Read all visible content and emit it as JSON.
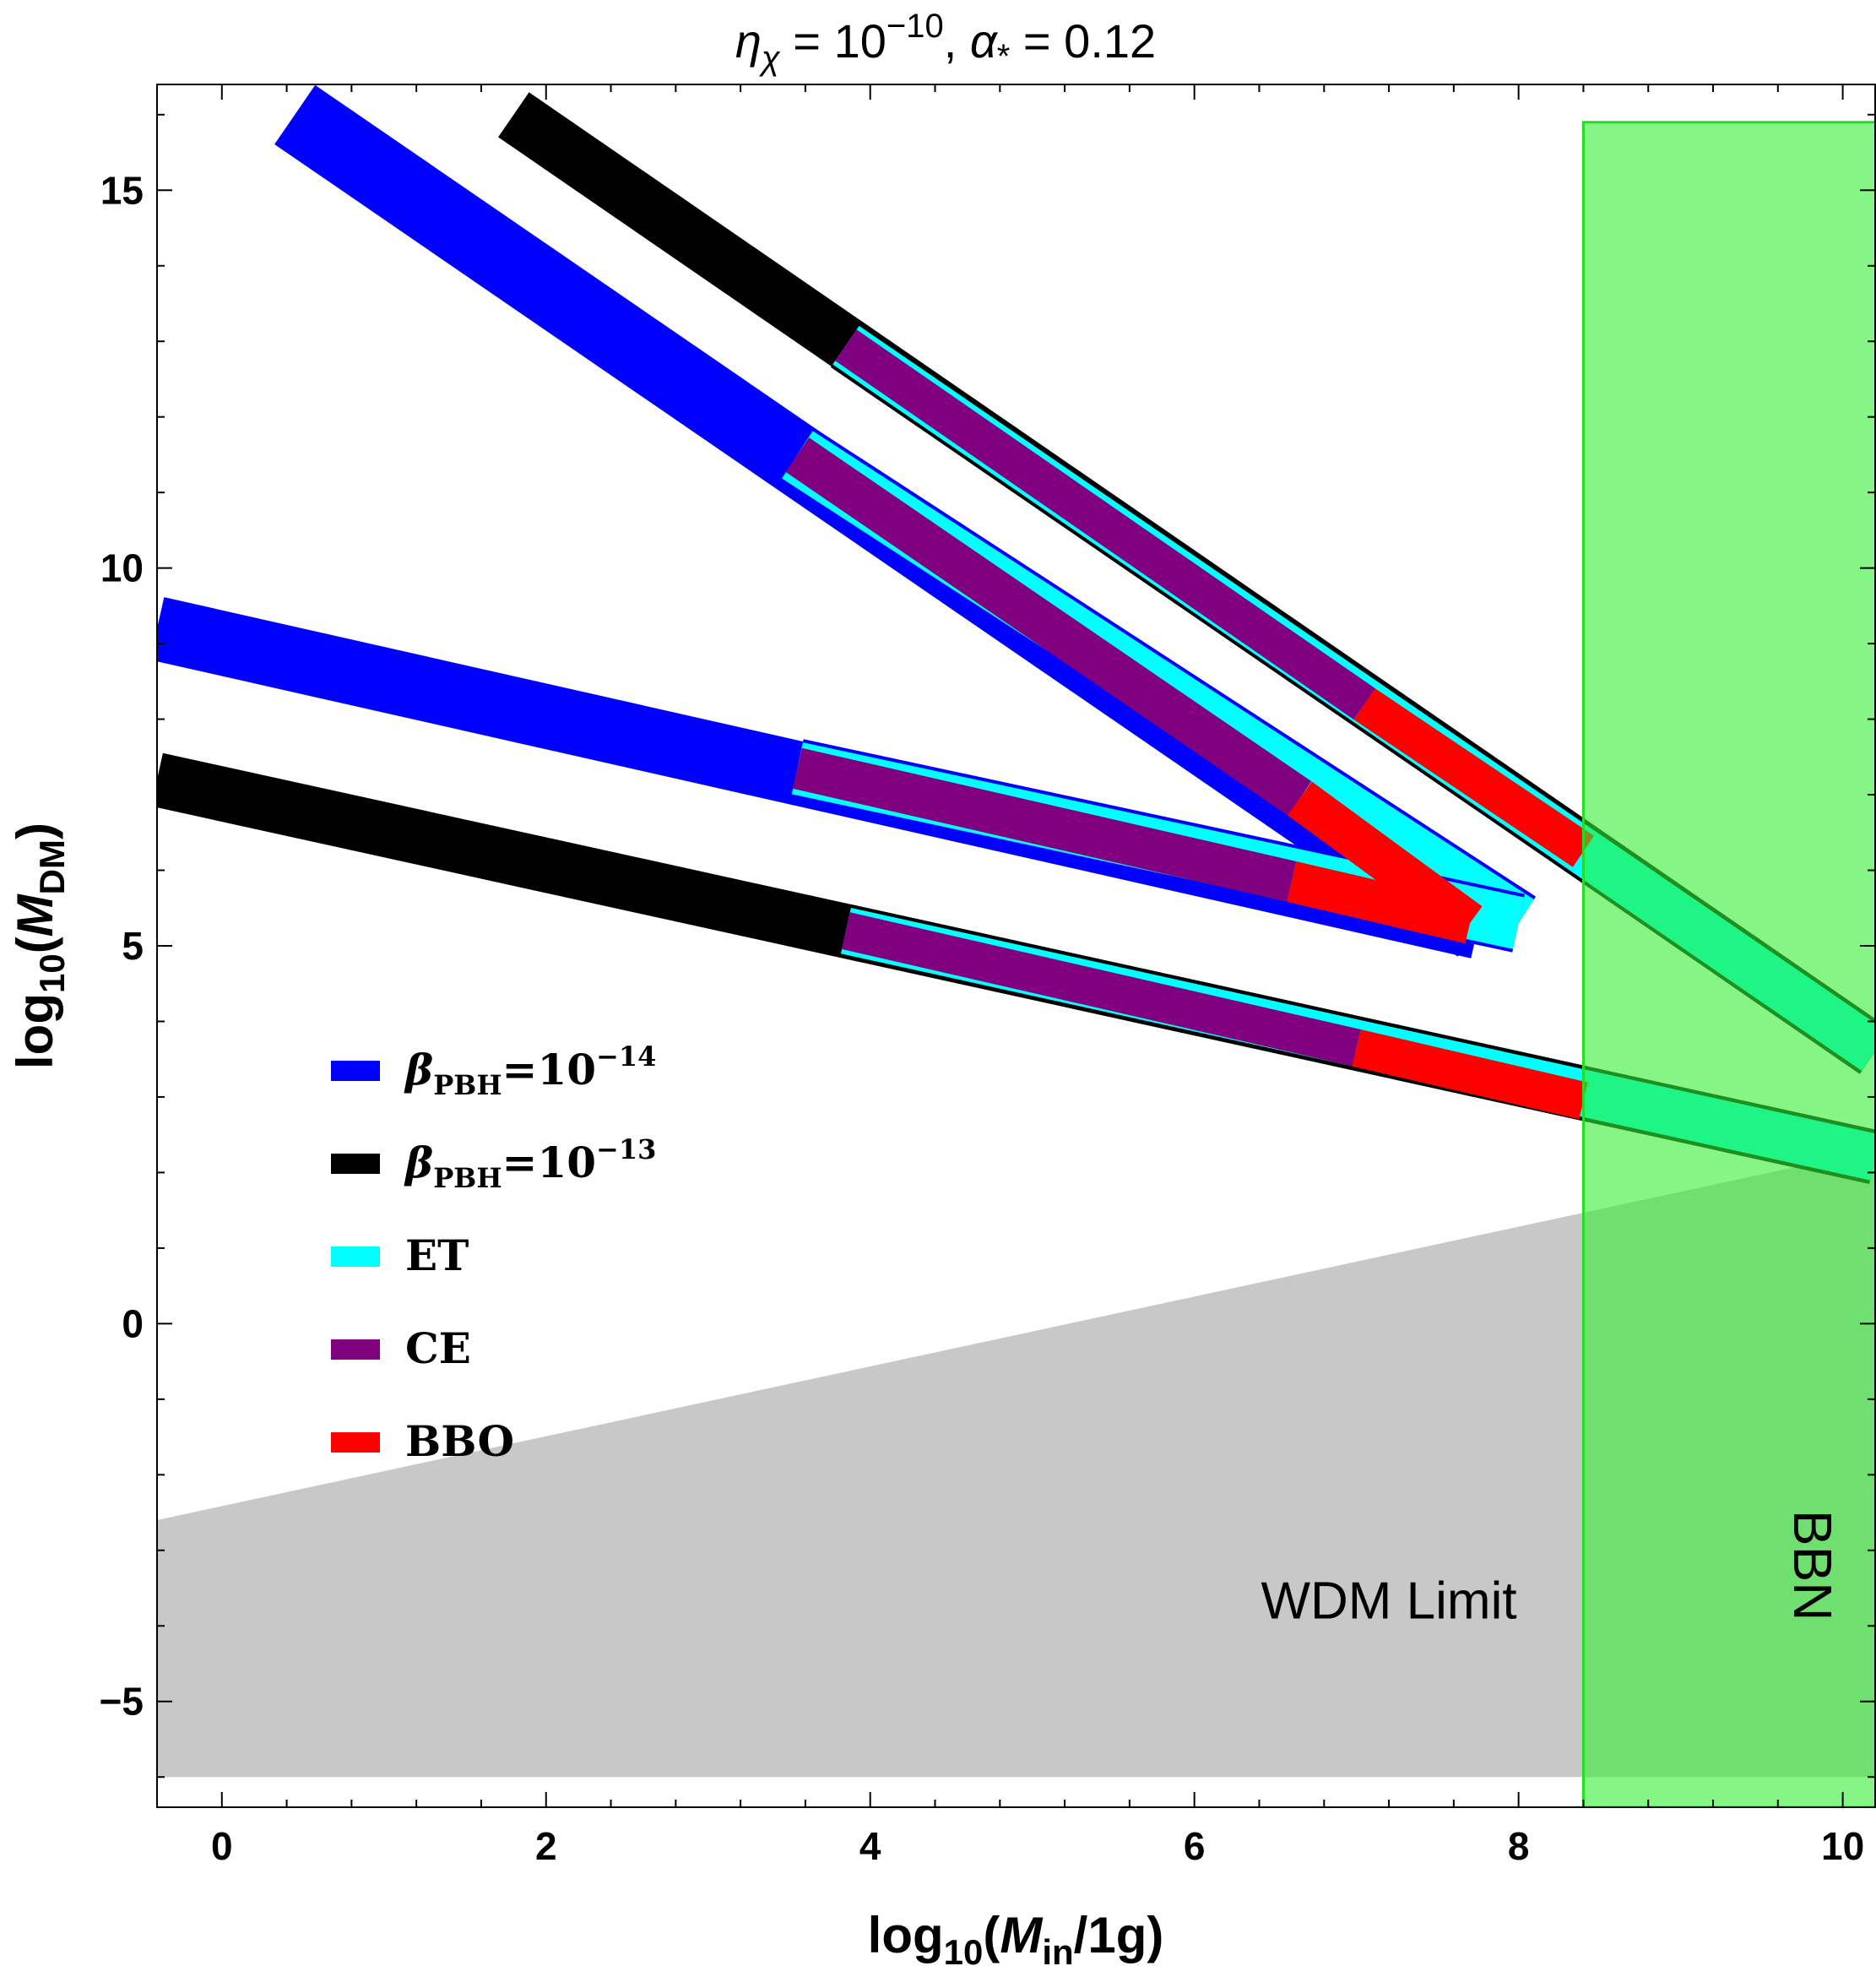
{
  "chart_data": {
    "type": "line",
    "title": "ηχ = 10−10, α* = 0.12",
    "title_parts": {
      "eta": "η",
      "eta_sub": "χ",
      "eq1": " = 10",
      "exp1": "−10",
      "comma": ", ",
      "alpha": "α",
      "alpha_sub": "*",
      "eq2": " = 0.12"
    },
    "xlabel": "log10(Min/1g)",
    "xlabel_parts": {
      "pre": "log",
      "sub": "10",
      "open": "(",
      "var": "M",
      "varsub": "in",
      "post": "/1g)"
    },
    "ylabel": "log10(MDM)",
    "ylabel_parts": {
      "pre": "log",
      "sub": "10",
      "open": "(",
      "var": "M",
      "varsub": "DM",
      "post": ")"
    },
    "xlim": [
      -0.4,
      10.2
    ],
    "ylim": [
      -6.4,
      16.4
    ],
    "xticks": [
      {
        "value": 0,
        "label": "0"
      },
      {
        "value": 2,
        "label": "2"
      },
      {
        "value": 4,
        "label": "4"
      },
      {
        "value": 6,
        "label": "6"
      },
      {
        "value": 8,
        "label": "8"
      },
      {
        "value": 10,
        "label": "10"
      }
    ],
    "yticks": [
      {
        "value": -5,
        "label": "−5"
      },
      {
        "value": 0,
        "label": "0"
      },
      {
        "value": 5,
        "label": "5"
      },
      {
        "value": 10,
        "label": "10"
      },
      {
        "value": 15,
        "label": "15"
      }
    ],
    "regions": [
      {
        "name": "WDM Limit",
        "label": "WDM Limit",
        "color": "#c8c8c8",
        "polygon": [
          [
            -0.4,
            -6.0
          ],
          [
            10.2,
            -6.0
          ],
          [
            10.2,
            2.3
          ],
          [
            -0.4,
            -2.6
          ]
        ],
        "label_at": [
          7.2,
          -3.9
        ]
      },
      {
        "name": "BBN",
        "label": "BBN",
        "color": "#33ee33",
        "opacity": 0.6,
        "xrange": [
          8.4,
          10.2
        ],
        "yrange": [
          -6.4,
          15.9
        ],
        "label_at": [
          9.7,
          -3.2
        ]
      }
    ],
    "series": [
      {
        "name": "beta-14-steep",
        "legend": "βPBH=10−14",
        "color": "#0000ff",
        "width_data": 0.95,
        "points": [
          [
            0.45,
            16.0
          ],
          [
            7.75,
            5.25
          ]
        ]
      },
      {
        "name": "beta-14-shallow",
        "legend": "βPBH=10−14",
        "color": "#0000ff",
        "width_data": 0.85,
        "points": [
          [
            -0.4,
            9.2
          ],
          [
            7.75,
            5.25
          ]
        ]
      },
      {
        "name": "beta-13-steep",
        "legend": "βPBH=10−13",
        "color": "#000000",
        "width_data": 0.72,
        "points": [
          [
            1.8,
            16.0
          ],
          [
            10.2,
            3.6
          ]
        ]
      },
      {
        "name": "beta-13-shallow",
        "legend": "βPBH=10−13",
        "color": "#000000",
        "width_data": 0.72,
        "points": [
          [
            -0.4,
            7.2
          ],
          [
            10.2,
            2.2
          ]
        ]
      },
      {
        "name": "et-13-steep",
        "legend": "ET",
        "color": "#00ffff",
        "width_data": 0.62,
        "points": [
          [
            3.85,
            12.95
          ],
          [
            10.2,
            3.6
          ]
        ]
      },
      {
        "name": "et-13-shallow",
        "legend": "ET",
        "color": "#00ffff",
        "width_data": 0.62,
        "points": [
          [
            3.85,
            5.2
          ],
          [
            10.2,
            2.2
          ]
        ]
      },
      {
        "name": "et-14-steep",
        "legend": "ET",
        "color": "#00ffff",
        "width_data": 0.75,
        "points": [
          [
            3.55,
            11.5
          ],
          [
            8.0,
            5.3
          ]
        ]
      },
      {
        "name": "et-14-shallow",
        "legend": "ET",
        "color": "#00ffff",
        "width_data": 0.7,
        "points": [
          [
            3.55,
            7.35
          ],
          [
            8.0,
            5.3
          ]
        ]
      },
      {
        "name": "ce-13-steep",
        "legend": "CE",
        "color": "#800080",
        "width_data": 0.5,
        "points": [
          [
            3.85,
            12.95
          ],
          [
            7.05,
            8.2
          ]
        ]
      },
      {
        "name": "ce-13-shallow",
        "legend": "CE",
        "color": "#800080",
        "width_data": 0.5,
        "points": [
          [
            3.85,
            5.2
          ],
          [
            7.0,
            3.65
          ]
        ]
      },
      {
        "name": "ce-14-steep",
        "legend": "CE",
        "color": "#800080",
        "width_data": 0.55,
        "points": [
          [
            3.55,
            11.5
          ],
          [
            6.65,
            6.95
          ]
        ]
      },
      {
        "name": "ce-14-shallow",
        "legend": "CE",
        "color": "#800080",
        "width_data": 0.55,
        "points": [
          [
            3.55,
            7.35
          ],
          [
            6.6,
            5.85
          ]
        ]
      },
      {
        "name": "bbo-13-steep",
        "legend": "BBO",
        "color": "#ff0000",
        "width_data": 0.5,
        "points": [
          [
            7.05,
            8.2
          ],
          [
            8.4,
            6.25
          ]
        ]
      },
      {
        "name": "bbo-13-shallow",
        "legend": "BBO",
        "color": "#ff0000",
        "width_data": 0.5,
        "points": [
          [
            7.0,
            3.65
          ],
          [
            8.4,
            2.95
          ]
        ]
      },
      {
        "name": "bbo-14-steep",
        "legend": "BBO",
        "color": "#ff0000",
        "width_data": 0.55,
        "points": [
          [
            6.65,
            6.95
          ],
          [
            7.7,
            5.3
          ]
        ]
      },
      {
        "name": "bbo-14-shallow",
        "legend": "BBO",
        "color": "#ff0000",
        "width_data": 0.55,
        "points": [
          [
            6.6,
            5.85
          ],
          [
            7.7,
            5.3
          ]
        ]
      }
    ],
    "legend": {
      "position": "middle-left",
      "items": [
        {
          "label_main": "β",
          "label_sub": "PBH",
          "label_eq": "=10",
          "label_sup": "−14",
          "color": "#0000ff"
        },
        {
          "label_main": "β",
          "label_sub": "PBH",
          "label_eq": "=10",
          "label_sup": "−13",
          "color": "#000000"
        },
        {
          "label_main": "ET",
          "label_sub": "",
          "label_eq": "",
          "label_sup": "",
          "color": "#00ffff"
        },
        {
          "label_main": "CE",
          "label_sub": "",
          "label_eq": "",
          "label_sup": "",
          "color": "#800080"
        },
        {
          "label_main": "BBO",
          "label_sub": "",
          "label_eq": "",
          "label_sup": "",
          "color": "#ff0000"
        }
      ]
    }
  }
}
